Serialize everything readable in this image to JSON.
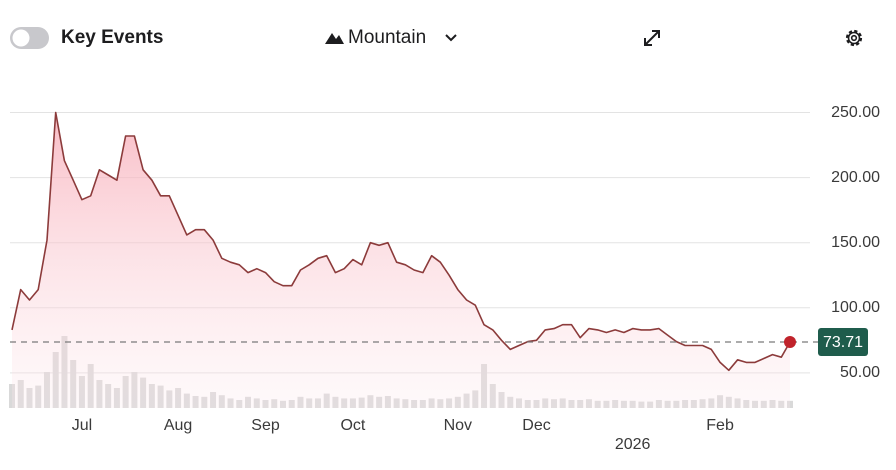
{
  "toolbar": {
    "events_label": "Key Events",
    "chart_style": "Mountain"
  },
  "chart_data": {
    "type": "area",
    "categories": [
      null,
      null,
      null,
      null,
      null,
      null,
      null,
      null,
      "Jul",
      null,
      null,
      null,
      null,
      null,
      null,
      null,
      null,
      null,
      null,
      "Aug",
      null,
      null,
      null,
      null,
      null,
      null,
      null,
      null,
      null,
      "Sep",
      null,
      null,
      null,
      null,
      null,
      null,
      null,
      null,
      null,
      "Oct",
      null,
      null,
      null,
      null,
      null,
      null,
      null,
      null,
      null,
      null,
      null,
      "Nov",
      null,
      null,
      null,
      null,
      null,
      null,
      null,
      null,
      "Dec",
      null,
      null,
      null,
      null,
      null,
      null,
      null,
      null,
      null,
      null,
      "2026",
      null,
      null,
      null,
      null,
      null,
      null,
      null,
      null,
      null,
      "Feb",
      null,
      null,
      null,
      null,
      null,
      null,
      null,
      null
    ],
    "series": [
      {
        "color": "#8c3b3b",
        "values": [
          83,
          114,
          106,
          114,
          152,
          250,
          213,
          198,
          183,
          186,
          206,
          202,
          198,
          232,
          232,
          206,
          198,
          186,
          186,
          171,
          156,
          160,
          160,
          152,
          138,
          135,
          133,
          127,
          130,
          127,
          120,
          117,
          117,
          129,
          133,
          138,
          140,
          127,
          130,
          137,
          133,
          150,
          148,
          150,
          135,
          133,
          129,
          127,
          140,
          135,
          125,
          114,
          106,
          102,
          87,
          83,
          75,
          68,
          71,
          74,
          75,
          83,
          84,
          87,
          87,
          77,
          84,
          83,
          81,
          83,
          81,
          84,
          83,
          83,
          84,
          79,
          74,
          71,
          71,
          71,
          68,
          58,
          52,
          60,
          58,
          58,
          61,
          64,
          62,
          73.71
        ]
      }
    ],
    "volume": {
      "color": "#d9d9d9",
      "ylim": [
        0,
        100
      ],
      "values": [
        30,
        35,
        25,
        28,
        45,
        70,
        90,
        60,
        40,
        55,
        35,
        30,
        25,
        40,
        45,
        38,
        30,
        28,
        22,
        25,
        18,
        15,
        14,
        20,
        16,
        12,
        10,
        14,
        12,
        10,
        11,
        9,
        10,
        14,
        12,
        12,
        18,
        14,
        12,
        12,
        13,
        16,
        14,
        15,
        12,
        11,
        10,
        10,
        12,
        11,
        12,
        14,
        18,
        22,
        55,
        30,
        20,
        14,
        12,
        10,
        10,
        12,
        11,
        12,
        10,
        10,
        11,
        9,
        9,
        10,
        9,
        9,
        8,
        8,
        10,
        9,
        9,
        10,
        10,
        11,
        12,
        16,
        14,
        12,
        10,
        9,
        9,
        10,
        9,
        9
      ]
    },
    "ylim": [
      23,
      275
    ],
    "yticks": [
      {
        "value": 50,
        "label": "50.00"
      },
      {
        "value": 100,
        "label": "100.00"
      },
      {
        "value": 150,
        "label": "150.00"
      },
      {
        "value": 200,
        "label": "200.00"
      },
      {
        "value": 250,
        "label": "250.00"
      }
    ],
    "grid": true
  }
}
